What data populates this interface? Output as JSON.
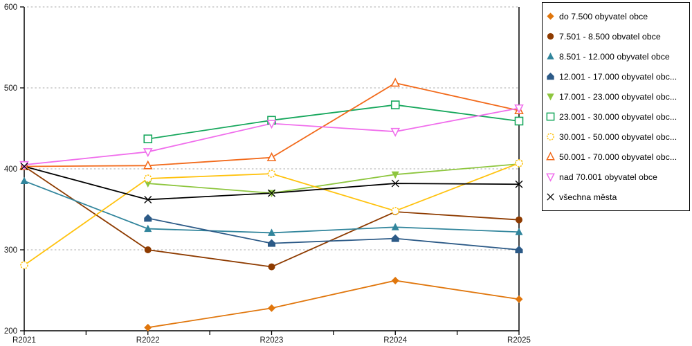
{
  "chart_data": {
    "type": "line",
    "title": "",
    "xlabel": "",
    "ylabel": "",
    "x": [
      "R2021",
      "R2022",
      "R2023",
      "R2024",
      "R2025"
    ],
    "ylim": [
      200,
      600
    ],
    "y_ticks": [
      200,
      300,
      400,
      500,
      600
    ],
    "grid": "horizontal-dotted",
    "legend_position": "right",
    "series": [
      {
        "name": "do 7.500 obyvatel obce",
        "marker": "diamond-filled",
        "color": "#E0760C",
        "values": [
          null,
          204,
          228,
          262,
          239
        ]
      },
      {
        "name": "7.501 - 8.500 obvatel obce",
        "marker": "circle-filled",
        "color": "#8E3B00",
        "values": [
          403,
          300,
          279,
          347,
          337
        ]
      },
      {
        "name": "8.501 - 12.000 obyvatel obce",
        "marker": "triangle-up-filled",
        "color": "#31859C",
        "values": [
          385,
          326,
          321,
          328,
          322
        ]
      },
      {
        "name": "12.001 - 17.000 obyvatel obc...",
        "marker": "pentagon-filled",
        "color": "#2C5A87",
        "values": [
          null,
          339,
          308,
          314,
          300
        ]
      },
      {
        "name": "17.001 - 23.000 obyvatel obc...",
        "marker": "triangle-down-filled",
        "color": "#8EC63F",
        "values": [
          null,
          382,
          370,
          393,
          406
        ]
      },
      {
        "name": "23.001 - 30.000 obyvatel obc...",
        "marker": "square-open",
        "color": "#16A75C",
        "values": [
          null,
          437,
          460,
          479,
          459
        ]
      },
      {
        "name": "30.001 - 50.000 obyvatel obc...",
        "marker": "circle-open",
        "color": "#FFC20E",
        "values": [
          281,
          388,
          394,
          348,
          407
        ]
      },
      {
        "name": "50.001 - 70.000 obyvatel obc...",
        "marker": "triangle-up-open",
        "color": "#F26A1B",
        "values": [
          403,
          404,
          414,
          506,
          472
        ]
      },
      {
        "name": "nad 70.001 obyvatel obce",
        "marker": "triangle-down-open",
        "color": "#F06EEC",
        "values": [
          405,
          421,
          456,
          446,
          475
        ]
      },
      {
        "name": "všechna města",
        "marker": "x-cross",
        "color": "#000000",
        "values": [
          403,
          362,
          370,
          382,
          381
        ]
      }
    ],
    "plot": {
      "x_left": 35,
      "x_right": 750,
      "y_bottom": 478,
      "y_top": 10,
      "axis_color": "#000000",
      "grid_color": "#ABABAB"
    }
  }
}
